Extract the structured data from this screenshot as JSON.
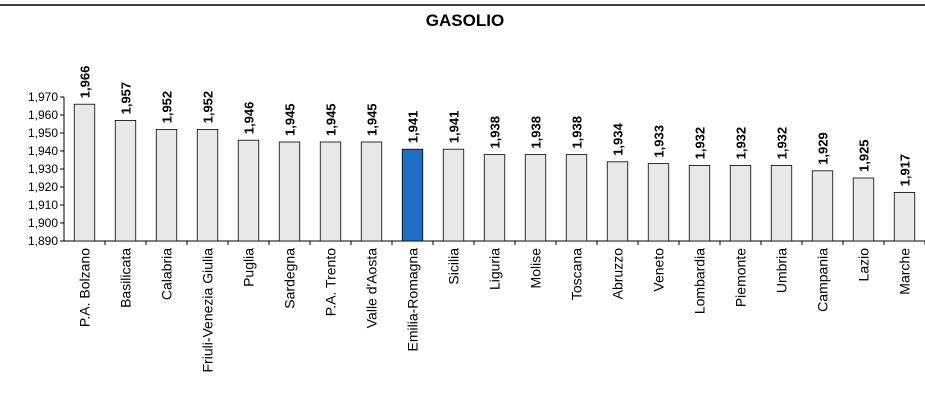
{
  "chart_data": {
    "type": "bar",
    "title": "GASOLIO",
    "xlabel": "",
    "ylabel": "",
    "ylim": [
      1.89,
      1.97
    ],
    "y_ticks": [
      1.89,
      1.9,
      1.91,
      1.92,
      1.93,
      1.94,
      1.95,
      1.96,
      1.97
    ],
    "y_tick_labels": [
      "1,890",
      "1,900",
      "1,910",
      "1,920",
      "1,930",
      "1,940",
      "1,950",
      "1,960",
      "1,970"
    ],
    "grid": false,
    "legend": "none",
    "categories": [
      "P.A. Bolzano",
      "Basilicata",
      "Calabria",
      "Friuli-Venezia Giulia",
      "Puglia",
      "Sardegna",
      "P.A. Trento",
      "Valle d'Aosta",
      "Emilia-Romagna",
      "Sicilia",
      "Liguria",
      "Molise",
      "Toscana",
      "Abruzzo",
      "Veneto",
      "Lombardia",
      "Piemonte",
      "Umbria",
      "Campania",
      "Lazio",
      "Marche"
    ],
    "values": [
      1.966,
      1.957,
      1.952,
      1.952,
      1.946,
      1.945,
      1.945,
      1.945,
      1.941,
      1.941,
      1.938,
      1.938,
      1.938,
      1.934,
      1.933,
      1.932,
      1.932,
      1.932,
      1.929,
      1.925,
      1.917
    ],
    "value_labels": [
      "1,966",
      "1,957",
      "1,952",
      "1,952",
      "1,946",
      "1,945",
      "1,945",
      "1,945",
      "1,941",
      "1,941",
      "1,938",
      "1,938",
      "1,938",
      "1,934",
      "1,933",
      "1,932",
      "1,932",
      "1,932",
      "1,929",
      "1,925",
      "1,917"
    ],
    "highlight_category": "Emilia-Romagna",
    "colors": {
      "bar_fill": "#e8e8e8",
      "bar_stroke": "#000000",
      "highlight_fill": "#1f6fc5",
      "axis": "#000000"
    }
  }
}
